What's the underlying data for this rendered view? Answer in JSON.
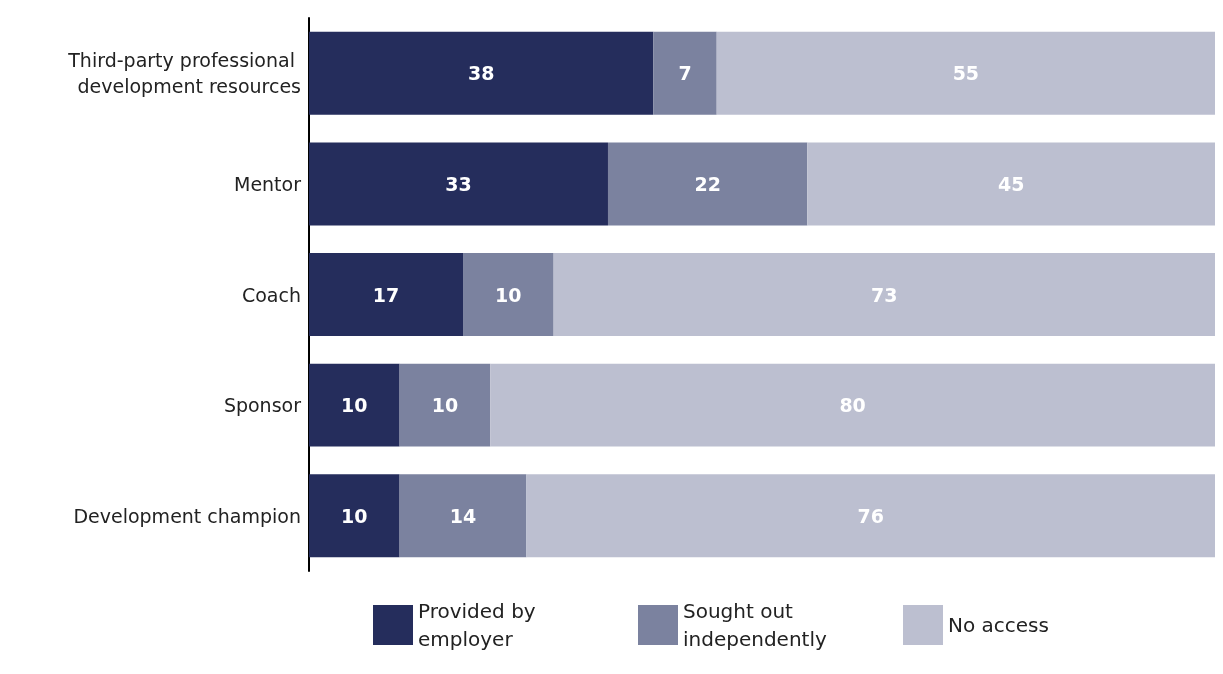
{
  "chart_data": {
    "type": "bar",
    "orientation": "horizontal",
    "stacked": true,
    "data_labels": true,
    "legend": "bottom",
    "tick_labels": "y",
    "xlim": [
      0,
      100
    ],
    "categories": [
      "Third-party professional development resources",
      "Mentor",
      "Coach",
      "Sponsor",
      "Development champion"
    ],
    "series": [
      {
        "name": "Provided by employer",
        "color": "#252d5c",
        "values": [
          38,
          33,
          17,
          10,
          10
        ]
      },
      {
        "name": "Sought out independently",
        "color": "#7b829f",
        "values": [
          7,
          22,
          10,
          10,
          14
        ]
      },
      {
        "name": "No access",
        "color": "#bcbfd0",
        "values": [
          55,
          45,
          73,
          80,
          76
        ]
      }
    ]
  }
}
